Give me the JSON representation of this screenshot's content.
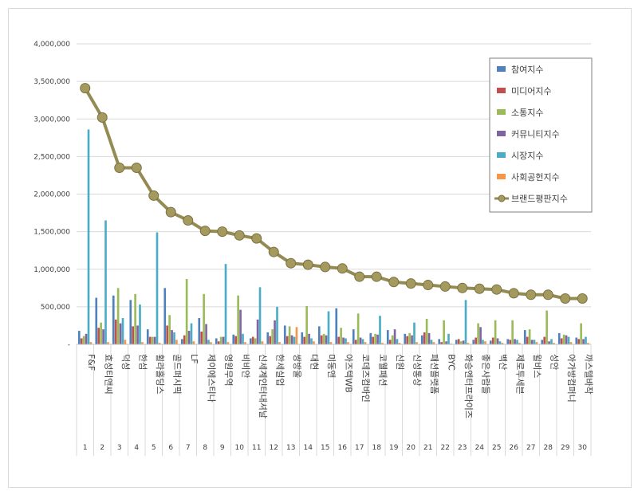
{
  "chart_data": {
    "type": "bar",
    "ylim": [
      0,
      4000000
    ],
    "yticks": [
      "-",
      "500,000",
      "1,000,000",
      "1,500,000",
      "2,000,000",
      "2,500,000",
      "3,000,000",
      "3,500,000",
      "4,000,000"
    ],
    "grid": true,
    "legend_position": "top-right",
    "ranks": [
      "1",
      "2",
      "3",
      "4",
      "5",
      "6",
      "7",
      "8",
      "9",
      "10",
      "11",
      "12",
      "13",
      "14",
      "15",
      "16",
      "17",
      "18",
      "19",
      "20",
      "21",
      "22",
      "23",
      "24",
      "25",
      "26",
      "27",
      "28",
      "29",
      "30"
    ],
    "categories": [
      "F&F",
      "효성티앤씨",
      "덕성",
      "한섬",
      "휠라홀딩스",
      "골드퍼시픽",
      "LF",
      "제이에스티나",
      "영원무역",
      "비비안",
      "신세계인터내셔날",
      "한세실업",
      "쌍방울",
      "대현",
      "미동앤",
      "아즈텍WB",
      "코데즈컴바인",
      "코웰패션",
      "신원",
      "신성통상",
      "패션플랫폼",
      "BYC",
      "화승엔터프라이즈",
      "좋은사람들",
      "백산",
      "제로투세븐",
      "윌비스",
      "성안",
      "아가방컴퍼니",
      "까스텔바작"
    ],
    "series": [
      {
        "name": "참여지수",
        "color": "#4f81bd",
        "values": [
          180000,
          620000,
          650000,
          590000,
          200000,
          750000,
          70000,
          350000,
          80000,
          130000,
          80000,
          160000,
          250000,
          160000,
          240000,
          480000,
          200000,
          150000,
          190000,
          140000,
          120000,
          70000,
          60000,
          60000,
          50000,
          70000,
          190000,
          60000,
          150000,
          90000
        ]
      },
      {
        "name": "미디어지수",
        "color": "#c0504d",
        "values": [
          80000,
          220000,
          330000,
          240000,
          100000,
          250000,
          120000,
          170000,
          40000,
          110000,
          100000,
          110000,
          110000,
          100000,
          120000,
          100000,
          60000,
          100000,
          60000,
          110000,
          160000,
          30000,
          70000,
          90000,
          90000,
          60000,
          100000,
          100000,
          80000,
          70000
        ]
      },
      {
        "name": "소통지수",
        "color": "#9bbb59",
        "values": [
          110000,
          290000,
          750000,
          670000,
          100000,
          390000,
          870000,
          670000,
          100000,
          650000,
          80000,
          200000,
          240000,
          510000,
          140000,
          220000,
          410000,
          140000,
          120000,
          150000,
          340000,
          320000,
          40000,
          280000,
          320000,
          320000,
          200000,
          450000,
          130000,
          280000
        ]
      },
      {
        "name": "커뮤니티지수",
        "color": "#8064a2",
        "values": [
          140000,
          200000,
          280000,
          250000,
          100000,
          190000,
          180000,
          270000,
          100000,
          460000,
          330000,
          320000,
          120000,
          140000,
          120000,
          90000,
          90000,
          130000,
          200000,
          120000,
          150000,
          40000,
          50000,
          230000,
          80000,
          70000,
          60000,
          40000,
          120000,
          70000
        ]
      },
      {
        "name": "시장지수",
        "color": "#4bacc6",
        "values": [
          2860000,
          1650000,
          350000,
          530000,
          1490000,
          160000,
          280000,
          60000,
          1070000,
          140000,
          760000,
          500000,
          100000,
          80000,
          440000,
          80000,
          70000,
          380000,
          70000,
          290000,
          60000,
          140000,
          590000,
          60000,
          40000,
          60000,
          60000,
          70000,
          100000,
          100000
        ]
      },
      {
        "name": "사회공헌지수",
        "color": "#f79646",
        "values": [
          30000,
          30000,
          60000,
          30000,
          20000,
          60000,
          40000,
          30000,
          30000,
          30000,
          40000,
          30000,
          230000,
          40000,
          30000,
          30000,
          30000,
          20000,
          20000,
          30000,
          30000,
          10000,
          20000,
          40000,
          20000,
          20000,
          30000,
          20000,
          30000,
          20000
        ]
      }
    ],
    "line_series": {
      "name": "브랜드평판지수",
      "color": "#948a54",
      "values": [
        3410000,
        3020000,
        2350000,
        2350000,
        1980000,
        1760000,
        1650000,
        1510000,
        1500000,
        1450000,
        1410000,
        1230000,
        1080000,
        1060000,
        1030000,
        1010000,
        900000,
        900000,
        830000,
        810000,
        790000,
        770000,
        750000,
        740000,
        730000,
        680000,
        660000,
        660000,
        610000,
        610000
      ]
    }
  }
}
